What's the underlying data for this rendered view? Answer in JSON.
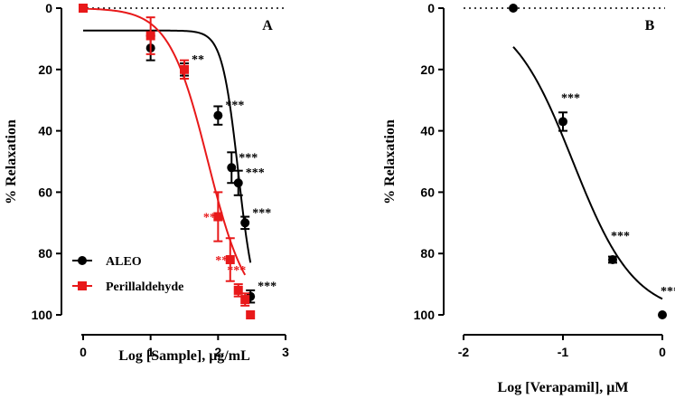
{
  "chart_data": [
    {
      "panel": "A",
      "type": "scatter",
      "xlabel": "Log [Sample], μg/mL",
      "ylabel": "% Relaxation",
      "xlim": [
        0,
        3
      ],
      "ylim": [
        0,
        100
      ],
      "y_inverted": true,
      "xticks": [
        0,
        1,
        2,
        3
      ],
      "yticks": [
        0,
        20,
        40,
        60,
        80,
        100
      ],
      "zero_reference_line": "dotted",
      "legend_position": "bottom-left",
      "series": [
        {
          "name": "ALEO",
          "color": "#000000",
          "marker": "circle",
          "points": [
            {
              "x": 0,
              "y": 0,
              "err": 0,
              "sig": ""
            },
            {
              "x": 1,
              "y": 13,
              "err": 4,
              "sig": ""
            },
            {
              "x": 1.5,
              "y": 20,
              "err": 2,
              "sig": "**"
            },
            {
              "x": 2,
              "y": 35,
              "err": 3,
              "sig": "***"
            },
            {
              "x": 2.2,
              "y": 52,
              "err": 5,
              "sig": "***"
            },
            {
              "x": 2.3,
              "y": 57,
              "err": 4,
              "sig": "***"
            },
            {
              "x": 2.4,
              "y": 70,
              "err": 2,
              "sig": "***"
            },
            {
              "x": 2.48,
              "y": 94,
              "err": 2,
              "sig": "***"
            }
          ],
          "fit": {
            "bottom": 0,
            "top": 100,
            "intercept": 7.3,
            "log_ec50": 2.3,
            "hill": 3.6,
            "x_start": 0,
            "x_end": 2.48
          }
        },
        {
          "name": "Perillaldehyde",
          "color": "#e8191a",
          "marker": "square",
          "points": [
            {
              "x": 0,
              "y": 0,
              "err": 0,
              "sig": ""
            },
            {
              "x": 1,
              "y": 9,
              "err": 6,
              "sig": ""
            },
            {
              "x": 1.5,
              "y": 20,
              "err": 3,
              "sig": ""
            },
            {
              "x": 2,
              "y": 68,
              "err": 8,
              "sig": "***"
            },
            {
              "x": 2.18,
              "y": 82,
              "err": 7,
              "sig": "***"
            },
            {
              "x": 2.3,
              "y": 92,
              "err": 2,
              "sig": "***"
            },
            {
              "x": 2.4,
              "y": 95,
              "err": 2,
              "sig": ""
            },
            {
              "x": 2.48,
              "y": 100,
              "err": 0,
              "sig": ""
            }
          ],
          "fit": {
            "log_ec50": 1.85,
            "hill": 1.5,
            "x_start": 0,
            "x_end": 2.4
          }
        }
      ]
    },
    {
      "panel": "B",
      "type": "scatter",
      "xlabel": "Log [Verapamil], μM",
      "ylabel": "% Relaxation",
      "xlim": [
        -2,
        0
      ],
      "ylim": [
        0,
        100
      ],
      "y_inverted": true,
      "xticks": [
        -2,
        -1,
        0
      ],
      "yticks": [
        0,
        20,
        40,
        60,
        80,
        100
      ],
      "zero_reference_line": "dotted",
      "series": [
        {
          "name": "Verapamil",
          "color": "#000000",
          "marker": "circle",
          "points": [
            {
              "x": -1.5,
              "y": 0,
              "err": 0,
              "sig": ""
            },
            {
              "x": -1,
              "y": 37,
              "err": 3,
              "sig": "***"
            },
            {
              "x": -0.5,
              "y": 82,
              "err": 1,
              "sig": "***"
            },
            {
              "x": 0,
              "y": 100,
              "err": 0,
              "sig": "***"
            }
          ],
          "fit": {
            "log_ec50": -0.9,
            "hill": 1.4,
            "x_start": -1.5,
            "x_end": 0
          }
        }
      ]
    }
  ]
}
